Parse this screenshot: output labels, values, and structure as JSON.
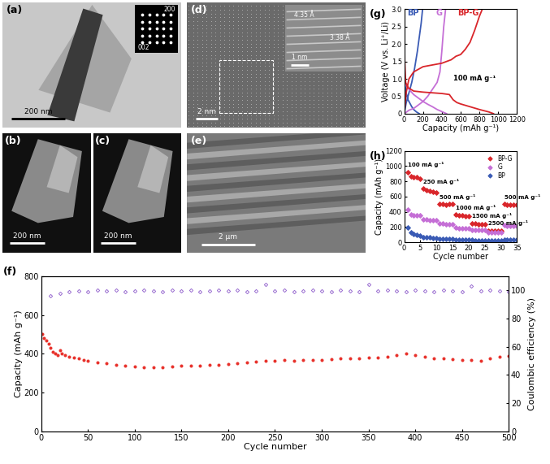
{
  "chart_data": [
    {
      "type": "scatter",
      "title": "(f)",
      "x_label": "Cycle number",
      "y_label": "Capacity (mAh g⁻¹)",
      "y2_label": "Coulombic efficiency (%)",
      "xlim": [
        0,
        500
      ],
      "xticks": [
        0,
        50,
        100,
        150,
        200,
        250,
        300,
        350,
        400,
        450,
        500
      ],
      "ylim": [
        0,
        800
      ],
      "yticks": [
        0,
        200,
        400,
        600,
        800
      ],
      "y2lim": [
        0,
        110
      ],
      "y2ticks": [
        0,
        20,
        40,
        60,
        80,
        100
      ],
      "series": [
        {
          "color": "#e8302a",
          "marker": "circle",
          "x": [
            1,
            3,
            5,
            8,
            10,
            12,
            15,
            18,
            20,
            22,
            25,
            30,
            35,
            40,
            45,
            50,
            60,
            70,
            80,
            90,
            100,
            110,
            120,
            130,
            140,
            150,
            160,
            170,
            180,
            190,
            200,
            210,
            220,
            230,
            240,
            250,
            260,
            270,
            280,
            290,
            300,
            310,
            320,
            330,
            340,
            350,
            360,
            370,
            380,
            390,
            400,
            410,
            420,
            430,
            440,
            450,
            460,
            470,
            480,
            490,
            500
          ],
          "values": [
            500,
            480,
            470,
            450,
            430,
            410,
            400,
            395,
            420,
            400,
            395,
            385,
            380,
            375,
            370,
            365,
            355,
            350,
            345,
            340,
            335,
            330,
            330,
            332,
            335,
            338,
            340,
            340,
            345,
            345,
            348,
            350,
            355,
            360,
            362,
            365,
            368,
            365,
            368,
            370,
            370,
            372,
            375,
            375,
            378,
            380,
            382,
            385,
            395,
            400,
            395,
            385,
            378,
            375,
            372,
            370,
            368,
            365,
            375,
            385,
            390
          ]
        },
        {
          "color": "#9b6fd1",
          "marker": "diamond_open",
          "axis": "y2",
          "x": [
            10,
            20,
            30,
            40,
            50,
            60,
            70,
            80,
            90,
            100,
            110,
            120,
            130,
            140,
            150,
            160,
            170,
            180,
            190,
            200,
            210,
            220,
            230,
            240,
            250,
            260,
            270,
            280,
            290,
            300,
            310,
            320,
            330,
            340,
            350,
            360,
            370,
            380,
            390,
            400,
            410,
            420,
            430,
            440,
            450,
            460,
            470,
            480,
            490,
            500
          ],
          "values": [
            96,
            98,
            99,
            99.5,
            99,
            100,
            99.5,
            100,
            99,
            99.5,
            100,
            99.5,
            99,
            100,
            99.5,
            100,
            99,
            99.5,
            100,
            99.5,
            100,
            99,
            99.5,
            104,
            99.5,
            100,
            99,
            99.5,
            100,
            99.5,
            99,
            100,
            99.5,
            99,
            104,
            99.5,
            100,
            99.5,
            99,
            100,
            99.5,
            99,
            100,
            99.5,
            99,
            103,
            99.5,
            100,
            99.5,
            99
          ]
        }
      ]
    },
    {
      "type": "line",
      "title": "(g)",
      "x_label": "Capacity (mAh g⁻¹)",
      "y_label": "Voltage (V vs. Li⁺/Li)",
      "xlim": [
        0,
        1200
      ],
      "xticks": [
        0,
        200,
        400,
        600,
        800,
        1000,
        1200
      ],
      "ylim": [
        0,
        3
      ],
      "yticks": [
        0,
        0.5,
        {
          "value": 1,
          "label": "1.0"
        },
        1.5,
        {
          "value": 2,
          "label": "2.0"
        },
        2.5,
        {
          "value": 3,
          "label": "3.0"
        }
      ],
      "annotations": [
        {
          "text": "100 mA g⁻¹"
        }
      ],
      "series": [
        {
          "name": "BP",
          "color": "#3a5bb5",
          "x": [
            0,
            5,
            20,
            40,
            60,
            80,
            100,
            130,
            160,
            null,
            0,
            20,
            50,
            80,
            110,
            140,
            160,
            180,
            195
          ],
          "values": [
            1.3,
            0.9,
            0.6,
            0.4,
            0.3,
            0.2,
            0.12,
            0.05,
            0,
            null,
            0,
            0.3,
            0.6,
            0.9,
            1.3,
            1.8,
            2.2,
            2.6,
            3.0
          ]
        },
        {
          "name": "G",
          "color": "#c56fd6",
          "x": [
            0,
            10,
            50,
            100,
            150,
            200,
            250,
            300,
            350,
            400,
            450,
            null,
            0,
            50,
            100,
            150,
            200,
            250,
            300,
            350,
            380,
            400,
            420,
            440
          ],
          "values": [
            1.0,
            0.85,
            0.7,
            0.55,
            0.45,
            0.35,
            0.27,
            0.2,
            0.12,
            0.06,
            0,
            null,
            0,
            0.1,
            0.15,
            0.25,
            0.35,
            0.5,
            0.7,
            0.9,
            1.2,
            1.8,
            2.5,
            3.0
          ]
        },
        {
          "name": "BP-G",
          "color": "#d9262b",
          "x": [
            0,
            5,
            15,
            40,
            100,
            200,
            300,
            400,
            480,
            520,
            560,
            600,
            700,
            800,
            900,
            950,
            null,
            0,
            20,
            50,
            100,
            200,
            300,
            400,
            500,
            550,
            600,
            650,
            700,
            750,
            800,
            830
          ],
          "values": [
            3.0,
            1.5,
            0.9,
            0.75,
            0.65,
            0.62,
            0.6,
            0.58,
            0.55,
            0.4,
            0.32,
            0.28,
            0.2,
            0.12,
            0.05,
            0,
            null,
            0,
            0.6,
            1.0,
            1.2,
            1.35,
            1.4,
            1.45,
            1.55,
            1.65,
            1.7,
            1.85,
            2.05,
            2.4,
            2.8,
            3.0
          ]
        }
      ]
    },
    {
      "type": "scatter",
      "title": "(h)",
      "x_label": "Cycle number",
      "y_label": "Capacity (mAh g⁻¹)",
      "xlim": [
        0,
        35
      ],
      "xticks": [
        0,
        5,
        10,
        15,
        20,
        25,
        30,
        35
      ],
      "ylim": [
        0,
        1200
      ],
      "yticks": [
        0,
        200,
        400,
        600,
        800,
        1000,
        1200
      ],
      "legend": "upper right",
      "marker": "diamond",
      "x": [
        1,
        2,
        3,
        4,
        5,
        6,
        7,
        8,
        9,
        10,
        11,
        12,
        13,
        14,
        15,
        16,
        17,
        18,
        19,
        20,
        21,
        22,
        23,
        24,
        25,
        26,
        27,
        28,
        29,
        30,
        31,
        32,
        33,
        34,
        35
      ],
      "annotations": [
        {
          "text": "100 mA g⁻¹",
          "x": 1
        },
        {
          "text": "250 mA g⁻¹",
          "x": 6
        },
        {
          "text": "500 mA g⁻¹",
          "x": 11
        },
        {
          "text": "1000 mA g⁻¹",
          "x": 16
        },
        {
          "text": "1500 mA g⁻¹",
          "x": 21
        },
        {
          "text": "2500 mA g⁻¹",
          "x": 26
        },
        {
          "text": "500 mA g⁻¹",
          "x": 31
        }
      ],
      "series": [
        {
          "name": "BP-G",
          "color": "#d9262b",
          "values": [
            920,
            870,
            850,
            850,
            830,
            700,
            680,
            670,
            660,
            650,
            500,
            500,
            495,
            500,
            500,
            360,
            355,
            350,
            345,
            345,
            250,
            245,
            240,
            240,
            238,
            150,
            148,
            145,
            145,
            145,
            500,
            495,
            495,
            490,
            490
          ]
        },
        {
          "name": "G",
          "color": "#c56fd6",
          "values": [
            430,
            360,
            355,
            355,
            350,
            300,
            295,
            290,
            290,
            285,
            250,
            245,
            240,
            240,
            238,
            190,
            185,
            185,
            182,
            180,
            165,
            162,
            160,
            160,
            158,
            130,
            128,
            126,
            125,
            125,
            220,
            218,
            216,
            215,
            215
          ]
        },
        {
          "name": "BP",
          "color": "#3a5bb5",
          "values": [
            190,
            130,
            110,
            100,
            90,
            70,
            65,
            60,
            58,
            55,
            45,
            42,
            40,
            40,
            38,
            35,
            33,
            32,
            30,
            30,
            28,
            27,
            26,
            25,
            25,
            22,
            22,
            21,
            20,
            20,
            35,
            35,
            34,
            34,
            33
          ]
        }
      ]
    }
  ],
  "images": [
    {
      "label": "(a)",
      "scale_bar": "200 nm",
      "inset_labels": [
        "200",
        "002"
      ]
    },
    {
      "label": "(b)",
      "scale_bar": "200 nm"
    },
    {
      "label": "(c)",
      "scale_bar": "200 nm"
    },
    {
      "label": "(d)",
      "scale_bar": "2 nm",
      "inset_scale_bar": "1 nm",
      "spacings": [
        "4.35 Å",
        "3.38 Å"
      ]
    },
    {
      "label": "(e)",
      "scale_bar": "2 μm"
    }
  ]
}
